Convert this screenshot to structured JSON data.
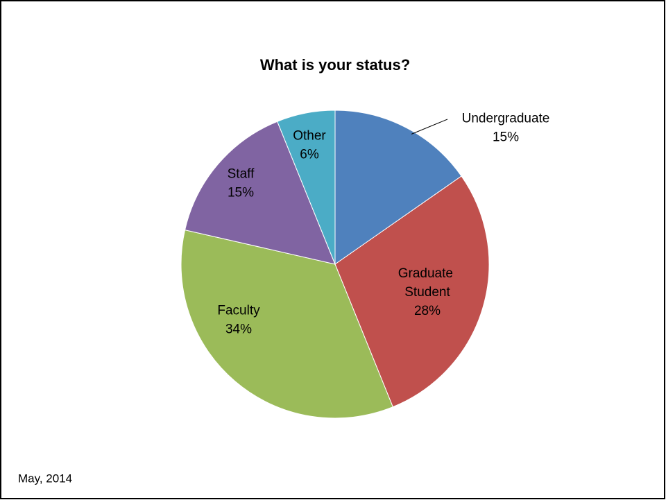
{
  "chart_data": {
    "type": "pie",
    "title": "What is your status?",
    "categories": [
      "Undergraduate",
      "Graduate Student",
      "Faculty",
      "Staff",
      "Other"
    ],
    "values": [
      15,
      28,
      34,
      15,
      6
    ],
    "value_labels": [
      "15%",
      "28%",
      "34%",
      "15%",
      "6%"
    ],
    "colors": [
      "#4f81bd",
      "#c0504d",
      "#9bbb59",
      "#8064a2",
      "#4bacc6"
    ]
  },
  "footer": "May, 2014"
}
